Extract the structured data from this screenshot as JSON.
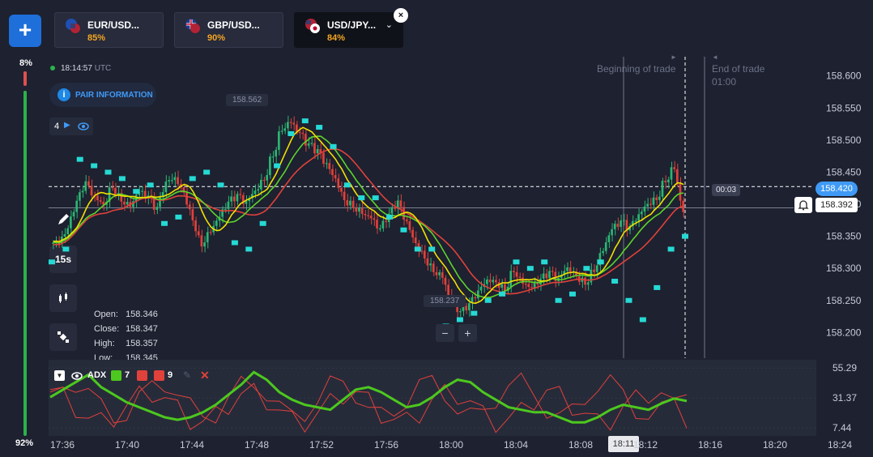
{
  "add_button": "+",
  "tabs": [
    {
      "pair": "EUR/USD...",
      "payout": "85%",
      "flag": "eu",
      "active": false
    },
    {
      "pair": "GBP/USD...",
      "payout": "90%",
      "flag": "gb",
      "active": false
    },
    {
      "pair": "USD/JPY...",
      "payout": "84%",
      "flag": "jp",
      "active": true
    }
  ],
  "close_tab": "×",
  "sentiment": {
    "up_label": "8%",
    "down_label": "92%",
    "up_fraction": 0.08
  },
  "clock": {
    "time": "18:14:57",
    "zone": "UTC"
  },
  "pair_info_label": "PAIR INFORMATION",
  "indicator_count": "4",
  "timeframe": "15s",
  "ohlc": {
    "open_label": "Open:",
    "open": "158.346",
    "close_label": "Close:",
    "close": "158.347",
    "high_label": "High:",
    "high": "158.357",
    "low_label": "Low:",
    "low": "158.345"
  },
  "trade": {
    "begin_label": "Beginning of trade",
    "end_label": "End of trade",
    "end_time": "01:00",
    "countdown": "00:03",
    "current_price": "158.420",
    "line_price": "158.392"
  },
  "markers": {
    "high": "158.562",
    "low": "158.237"
  },
  "zoom": {
    "minus": "−",
    "plus": "+"
  },
  "adx": {
    "label": "ADX",
    "period1": "7",
    "period2": "9",
    "colors": {
      "adx": "#4cc81e",
      "di": "#e0413a"
    }
  },
  "colors": {
    "bg": "#1d2130",
    "up": "#2bb673",
    "down": "#e0413a",
    "psar": "#26d9d4",
    "ma_yellow": "#f0e000",
    "ma_red": "#e0413a",
    "ma_green": "#5ed32c",
    "accent": "#1e88e5",
    "payout": "#f5a623"
  },
  "chart_data": {
    "type": "candlestick",
    "title": "USD/JPY",
    "ylim": [
      158.16,
      158.63
    ],
    "y_ticks": [
      "158.600",
      "158.550",
      "158.500",
      "158.450",
      "158.400",
      "158.350",
      "158.300",
      "158.250",
      "158.200"
    ],
    "x_ticks": [
      "17:36",
      "17:40",
      "17:44",
      "17:48",
      "17:52",
      "17:56",
      "18:00",
      "18:04",
      "18:08",
      "18:12",
      "18:16",
      "18:20",
      "18:24"
    ],
    "current_time_label": "18:11",
    "close_path": [
      158.34,
      158.36,
      158.4,
      158.43,
      158.41,
      158.4,
      158.43,
      158.41,
      158.4,
      158.42,
      158.41,
      158.39,
      158.43,
      158.44,
      158.42,
      158.38,
      158.34,
      158.36,
      158.38,
      158.4,
      158.41,
      158.4,
      158.42,
      158.44,
      158.48,
      158.52,
      158.53,
      158.51,
      158.49,
      158.48,
      158.46,
      158.44,
      158.41,
      158.4,
      158.39,
      158.38,
      158.36,
      158.38,
      158.4,
      158.37,
      158.34,
      158.32,
      158.3,
      158.29,
      158.25,
      158.23,
      158.24,
      158.26,
      158.28,
      158.28,
      158.27,
      158.3,
      158.28,
      158.27,
      158.28,
      158.29,
      158.28,
      158.3,
      158.29,
      158.28,
      158.3,
      158.33,
      158.36,
      158.37,
      158.36,
      158.38,
      158.4,
      158.41,
      158.44,
      158.46,
      158.39
    ],
    "psar": [
      158.31,
      158.33,
      158.47,
      158.46,
      158.45,
      158.44,
      158.42,
      158.43,
      158.37,
      158.38,
      158.44,
      158.45,
      158.43,
      158.34,
      158.33,
      158.37,
      158.46,
      158.51,
      158.53,
      158.52,
      158.49,
      158.43,
      158.41,
      158.41,
      158.38,
      158.36,
      158.33,
      158.33,
      158.21,
      158.22,
      158.23,
      158.25,
      158.26,
      158.31,
      158.3,
      158.31,
      158.25,
      158.26,
      158.3,
      158.31,
      158.28,
      158.25,
      158.22,
      158.27,
      158.33,
      158.35
    ],
    "ma_window": [
      3,
      5,
      8
    ],
    "adx_panel": {
      "ylim": [
        5,
        58
      ],
      "ticks": [
        "55.29",
        "31.37",
        "7.44"
      ],
      "adx": [
        32,
        38,
        44,
        50,
        40,
        34,
        28,
        24,
        20,
        16,
        14,
        16,
        20,
        26,
        34,
        42,
        52,
        46,
        36,
        30,
        26,
        24,
        22,
        30,
        38,
        40,
        36,
        30,
        24,
        26,
        32,
        40,
        46,
        44,
        36,
        30,
        24,
        22,
        20,
        20,
        16,
        12,
        12,
        16,
        22,
        26,
        24,
        22,
        27,
        31,
        29
      ]
    }
  }
}
